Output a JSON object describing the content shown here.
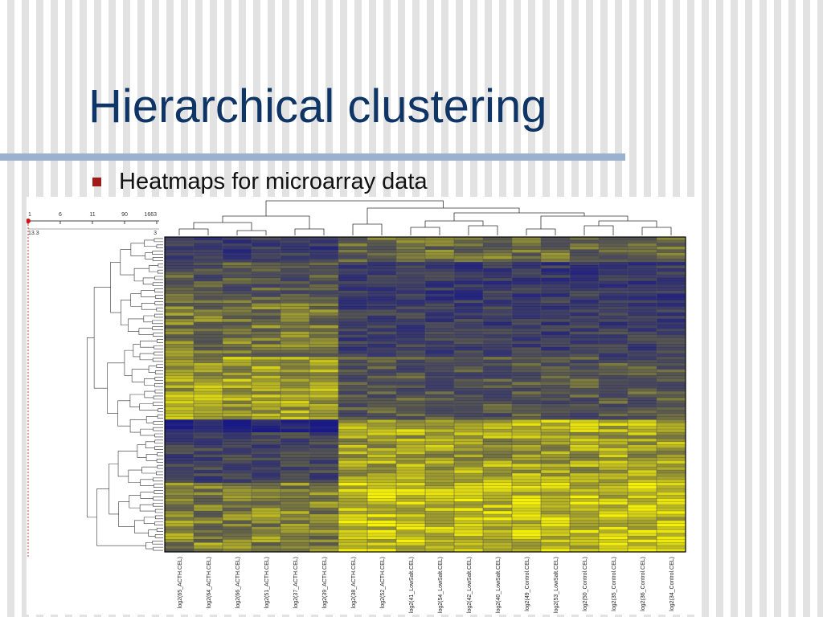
{
  "slide": {
    "title": "Hierarchical clustering",
    "bullet": "Heatmaps for microarray data"
  },
  "colors": {
    "title": "#0f3566",
    "rule": "#9ab1cf",
    "bullet": "#a11a1a",
    "heat_low": "#1a1a8a",
    "heat_mid": "#5a5a50",
    "heat_high": "#f5f000"
  },
  "slider": {
    "ticks": [
      "1",
      "6",
      "11",
      "90",
      "1663"
    ],
    "left_value": "13.3",
    "right_value": "3"
  },
  "chart_data": {
    "type": "heatmap",
    "columns": [
      "log2(65_ACTH.CEL)",
      "log2(64_ACTH.CEL)",
      "log2(66_ACTH.CEL)",
      "log2(51_ACTH.CEL)",
      "log2(37_ACTH.CEL)",
      "log2(39_ACTH.CEL)",
      "log2(38_ACTH.CEL)",
      "log2(52_ACTH.CEL)",
      "log2(41_LowSalt.CEL)",
      "log2(54_LowSalt.CEL)",
      "log2(42_LowSalt.CEL)",
      "log2(40_LowSalt.CEL)",
      "log2(49_Control.CEL)",
      "log2(53_LowSalt.CEL)",
      "log2(50_Control.CEL)",
      "log2(35_Control.CEL)",
      "log2(36_Control.CEL)",
      "log2(34_Control.CEL)"
    ],
    "groups": [
      "ACTH",
      "ACTH",
      "ACTH",
      "ACTH",
      "ACTH",
      "ACTH",
      "ACTH",
      "ACTH",
      "LowSalt",
      "LowSalt",
      "LowSalt",
      "LowSalt",
      "Control",
      "LowSalt",
      "Control",
      "Control",
      "Control",
      "Control"
    ],
    "row_count": 100,
    "colormap": "blue-gray-yellow"
  }
}
